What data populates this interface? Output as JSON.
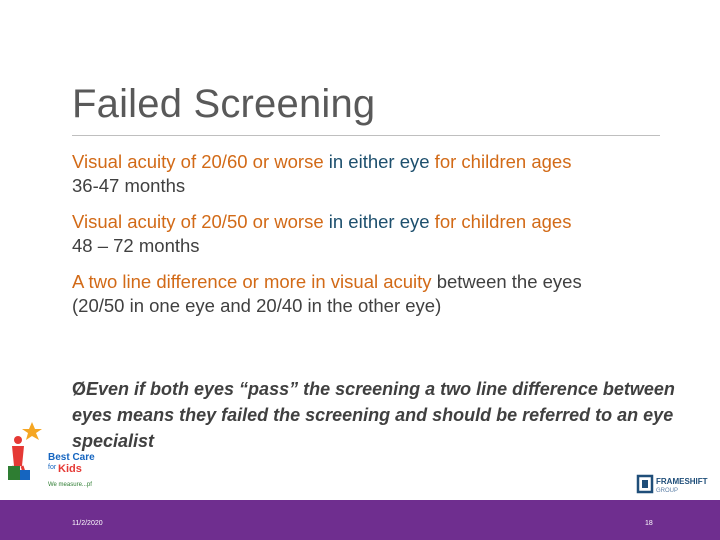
{
  "slide": {
    "title": "Failed Screening",
    "paragraphs": [
      {
        "p1": "Visual acuity of 20/60 or worse ",
        "p2": "in either eye",
        "p3": " for children ages",
        "p4": "36-47 months"
      },
      {
        "p1": "Visual acuity of 20/50 or worse ",
        "p2": "in either eye",
        "p3": " for children ages",
        "p4": "48 – 72 months"
      },
      {
        "p1": "A two line difference or more in visual acuity",
        "p2": " between the eyes",
        "p3": "(20/50 in one eye and 20/40 in the other eye)"
      }
    ],
    "bullet": {
      "marker": "Ø",
      "text": "Even if both eyes “pass” the screening a two line difference between eyes means they failed the screening and should be referred to an eye specialist"
    }
  },
  "logos": {
    "left_line1": "Best Care",
    "left_line2": "for",
    "left_line3": "Kids",
    "left_tagline": "We measure...pf",
    "right_line1": "FRAMESHIFT",
    "right_line2": "GROUP"
  },
  "footer": {
    "date": "11/2/2020",
    "page": "18"
  },
  "colors": {
    "footer_bg": "#6f2e8f",
    "orange_text": "#d26a17",
    "teal_text": "#1d4f6d",
    "title": "#595959"
  }
}
